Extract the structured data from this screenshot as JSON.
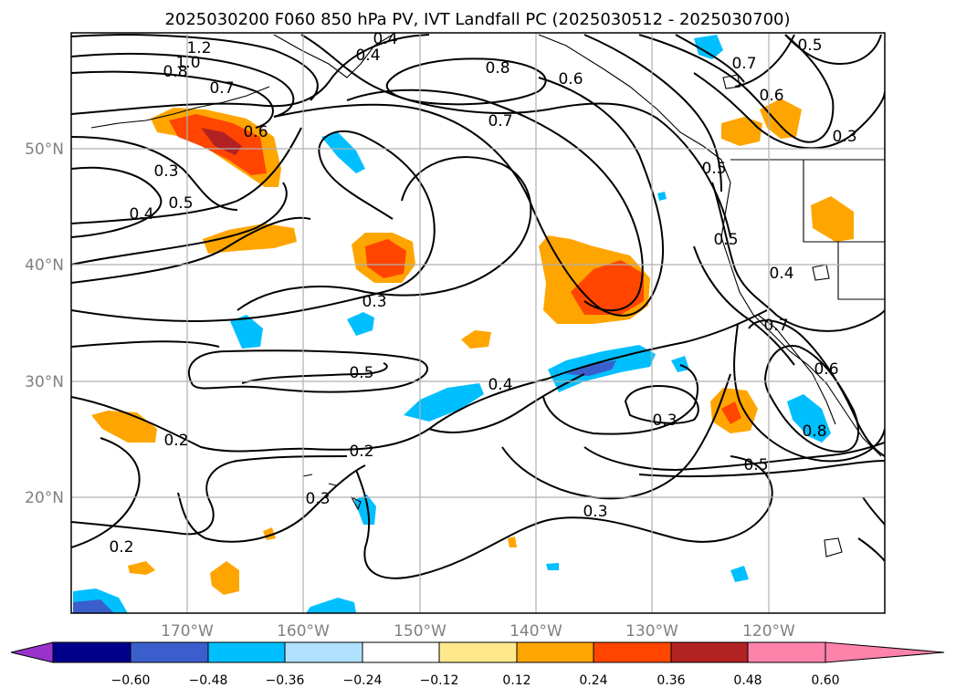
{
  "title": "2025030200 F060 850 hPa PV, IVT Landfall PC (2025030512 - 2025030700)",
  "map": {
    "lat_labels": [
      "50°N",
      "40°N",
      "30°N",
      "20°N"
    ],
    "lon_labels": [
      "170°W",
      "160°W",
      "150°W",
      "140°W",
      "130°W",
      "120°W"
    ],
    "contour_labels": [
      "1.2",
      "1.0",
      "0.8",
      "0.7",
      "0.6",
      "0.4",
      "0.4",
      "0.8",
      "0.6",
      "0.7",
      "0.7",
      "0.6",
      "0.3",
      "0.5",
      "0.3",
      "0.4",
      "0.5",
      "0.5",
      "0.4",
      "0.3",
      "0.5",
      "0.4",
      "0.3",
      "0.5",
      "0.2",
      "0.2",
      "0.3",
      "0.2",
      "0.3",
      "0.7",
      "0.6",
      "0.8",
      "0.5"
    ],
    "contour_field": "850 hPa PV",
    "shaded_field": "IVT Landfall PC"
  },
  "colorbar": {
    "ticks": [
      "−0.60",
      "−0.48",
      "−0.36",
      "−0.24",
      "−0.12",
      "0.12",
      "0.24",
      "0.36",
      "0.48",
      "0.60"
    ],
    "bins": [
      {
        "color": "#9933cc"
      },
      {
        "color": "#00008b"
      },
      {
        "color": "#3a5fcd"
      },
      {
        "color": "#00bfff"
      },
      {
        "color": "#b0e2ff"
      },
      {
        "color": "#ffffff"
      },
      {
        "color": "#ffe88c"
      },
      {
        "color": "#ffa500"
      },
      {
        "color": "#ff4500"
      },
      {
        "color": "#b22222"
      },
      {
        "color": "#ff82ab"
      }
    ]
  }
}
